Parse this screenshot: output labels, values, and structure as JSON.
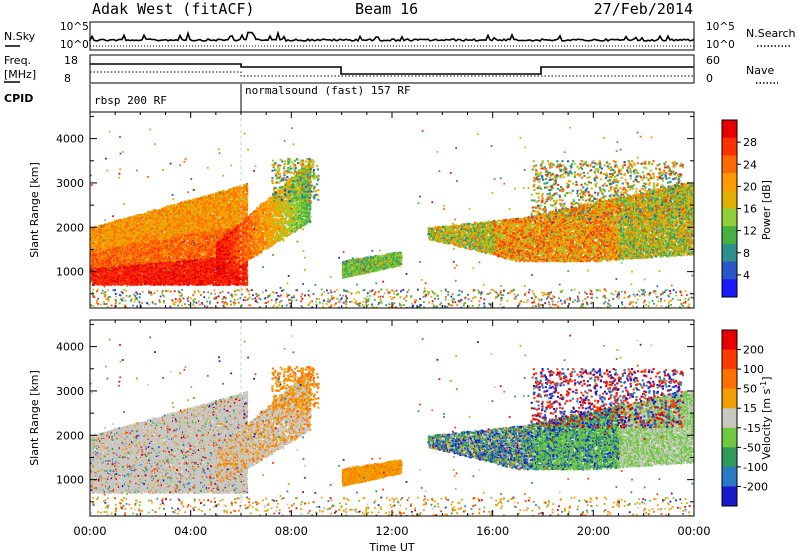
{
  "header": {
    "station": "Adak West (fitACF)",
    "beam": "Beam 16",
    "date": "27/Feb/2014"
  },
  "aux_panel": {
    "nsky_label": "N.Sky",
    "nsky_ticks": [
      "10^5",
      "10^0"
    ],
    "nsearch_label": "N.Search",
    "freq_label_line1": "Freq.",
    "freq_label_line2": "[MHz]",
    "freq_ticks": [
      "18",
      "8"
    ],
    "nave_label": "Nave",
    "nave_ticks": [
      "60",
      "0"
    ],
    "cpid_label": "CPID",
    "cpid_segments": [
      {
        "label": "rbsp 200 RF",
        "start_hour": 0,
        "end_hour": 6
      },
      {
        "label": "normalsound (fast) 157 RF",
        "start_hour": 6,
        "end_hour": 24
      }
    ]
  },
  "chart_data": [
    {
      "type": "heatmap",
      "ylabel": "Slant Range [km]",
      "xlabel": "Time UT",
      "x_ticks": [
        "00:00",
        "04:00",
        "08:00",
        "12:00",
        "16:00",
        "20:00",
        "00:00"
      ],
      "xlim_hours": [
        0,
        24
      ],
      "y_ticks": [
        1000,
        2000,
        3000,
        4000
      ],
      "ylim_km": [
        180,
        4600
      ],
      "colorbar": {
        "label": "Power [dB]",
        "ticks": [
          "4",
          "8",
          "12",
          "16",
          "20",
          "24",
          "28"
        ],
        "colors": [
          "#1a1aff",
          "#2a57c8",
          "#2f8f8a",
          "#48b040",
          "#8fcf3a",
          "#e0b000",
          "#ff9a00",
          "#ff6a00",
          "#ff3000",
          "#e80000"
        ]
      }
    },
    {
      "type": "heatmap",
      "ylabel": "Slant Range [km]",
      "xlabel": "Time UT",
      "x_ticks": [
        "00:00",
        "04:00",
        "08:00",
        "12:00",
        "16:00",
        "20:00",
        "00:00"
      ],
      "xlim_hours": [
        0,
        24
      ],
      "y_ticks": [
        1000,
        2000,
        3000,
        4000
      ],
      "ylim_km": [
        180,
        4600
      ],
      "colorbar": {
        "label": "Velocity [m s",
        "label_sup": "-1",
        "label_end": "]",
        "ticks": [
          "200",
          "100",
          "50",
          "15",
          "-15",
          "-50",
          "-100",
          "-200"
        ],
        "colors": [
          "#1a1acd",
          "#2a7ac8",
          "#2f9a5a",
          "#6fc840",
          "#c8c8c0",
          "#f0a000",
          "#ff7000",
          "#ff3a00",
          "#e80000"
        ]
      }
    }
  ]
}
